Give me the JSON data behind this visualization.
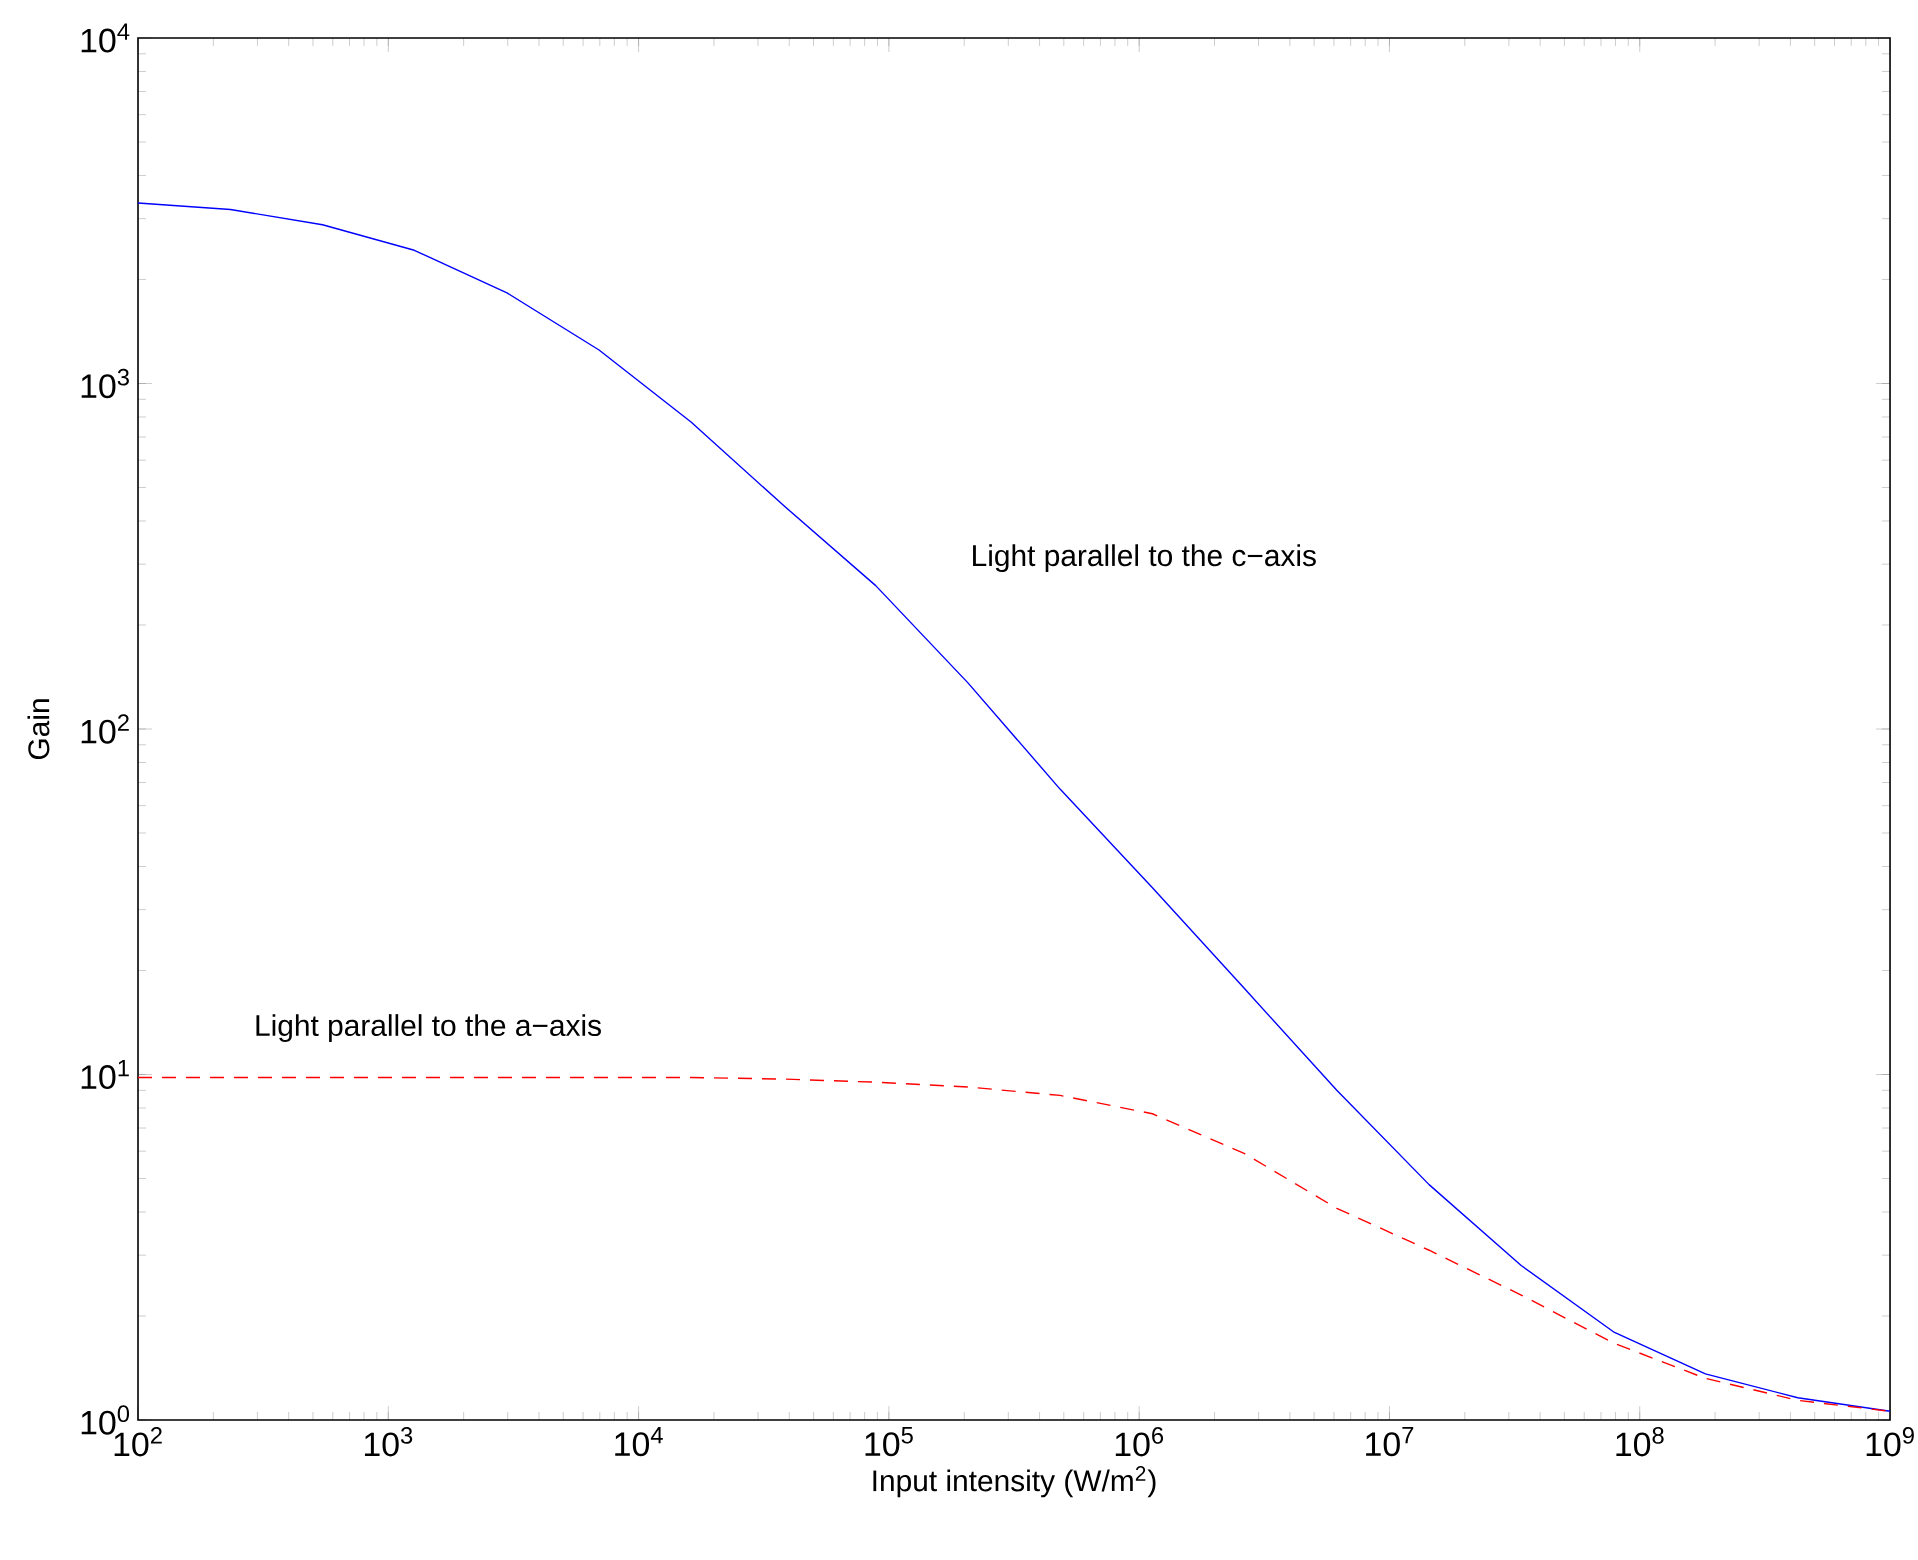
{
  "chart_data": {
    "type": "line",
    "xlabel": "Input intensity  (W/m$^{2}$)",
    "ylabel": "Gain",
    "log": "xy",
    "grid": false,
    "marker": "none",
    "xlim": [
      100,
      1000000000
    ],
    "ylim": [
      1,
      10000
    ],
    "xticks": [
      {
        "value": 100,
        "label": "10$^{2}$"
      },
      {
        "value": 1000,
        "label": "10$^{3}$"
      },
      {
        "value": 10000,
        "label": "10$^{4}$"
      },
      {
        "value": 100000,
        "label": "10$^{5}$"
      },
      {
        "value": 1000000,
        "label": "10$^{6}$"
      },
      {
        "value": 10000000,
        "label": "10$^{7}$"
      },
      {
        "value": 100000000,
        "label": "10$^{8}$"
      },
      {
        "value": 1000000000,
        "label": "10$^{9}$"
      }
    ],
    "yticks": [
      {
        "value": 1,
        "label": "10$^{0}$"
      },
      {
        "value": 10,
        "label": "10$^{1}$"
      },
      {
        "value": 100,
        "label": "10$^{2}$"
      },
      {
        "value": 1000,
        "label": "10$^{3}$"
      },
      {
        "value": 10000,
        "label": "10$^{4}$"
      }
    ],
    "x": [
      100,
      234,
      546,
      1270,
      2980,
      6950,
      16200,
      37900,
      88600,
      207000,
      483000,
      1130000,
      2640000,
      6160000,
      14400000,
      33600000,
      78500000,
      183000000,
      428000000,
      1000000000
    ],
    "annotations": [
      "Light parallel to the c−axis",
      "Light parallel to the a−axis"
    ],
    "series": [
      {
        "color": "#0000ff",
        "line_style": "solid",
        "values": [
          3330,
          3190,
          2880,
          2430,
          1830,
          1250,
          774,
          444,
          260,
          136,
          67,
          34.7,
          17.7,
          9.0,
          4.8,
          2.8,
          1.8,
          1.36,
          1.16,
          1.06
        ]
      },
      {
        "color": "#ff0000",
        "line_style": "dashed",
        "values": [
          9.8,
          9.8,
          9.8,
          9.8,
          9.8,
          9.8,
          9.8,
          9.7,
          9.5,
          9.2,
          8.7,
          7.7,
          5.9,
          4.1,
          3.1,
          2.3,
          1.67,
          1.32,
          1.14,
          1.06
        ]
      }
    ]
  }
}
